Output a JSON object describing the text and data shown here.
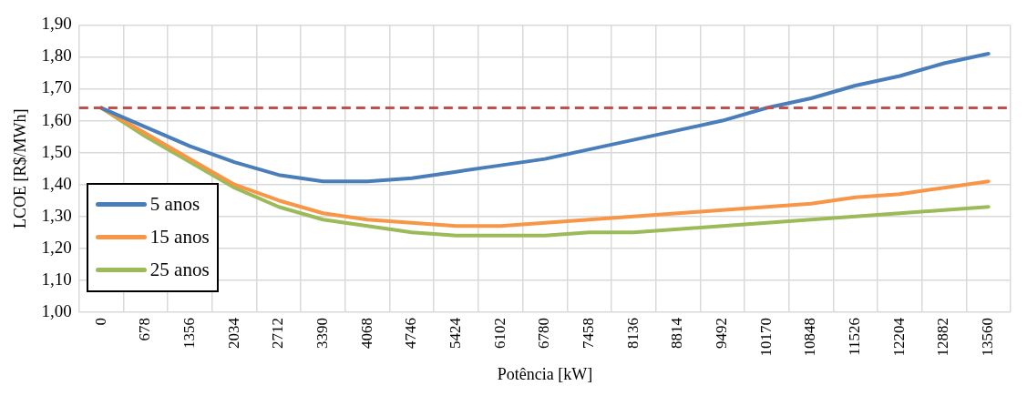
{
  "chart_data": {
    "type": "line",
    "xlabel": "Potência [kW]",
    "ylabel": "LCOE [R$/MWh]",
    "categories": [
      "0",
      "678",
      "1356",
      "2034",
      "2712",
      "3390",
      "4068",
      "4746",
      "5424",
      "6102",
      "6780",
      "7458",
      "8136",
      "8814",
      "9492",
      "10170",
      "10848",
      "11526",
      "12204",
      "12882",
      "13560"
    ],
    "series": [
      {
        "name": "5 anos",
        "color": "#4a7ebb",
        "values": [
          1.64,
          1.58,
          1.52,
          1.47,
          1.43,
          1.41,
          1.41,
          1.42,
          1.44,
          1.46,
          1.48,
          1.51,
          1.54,
          1.57,
          1.6,
          1.64,
          1.67,
          1.71,
          1.74,
          1.78,
          1.81
        ]
      },
      {
        "name": "15 anos",
        "color": "#f79646",
        "values": [
          1.64,
          1.56,
          1.48,
          1.4,
          1.35,
          1.31,
          1.29,
          1.28,
          1.27,
          1.27,
          1.28,
          1.29,
          1.3,
          1.31,
          1.32,
          1.33,
          1.34,
          1.36,
          1.37,
          1.39,
          1.41
        ]
      },
      {
        "name": "25 anos",
        "color": "#9bbb59",
        "values": [
          1.64,
          1.55,
          1.47,
          1.39,
          1.33,
          1.29,
          1.27,
          1.25,
          1.24,
          1.24,
          1.24,
          1.25,
          1.25,
          1.26,
          1.27,
          1.28,
          1.29,
          1.3,
          1.31,
          1.32,
          1.33
        ]
      }
    ],
    "ylim": [
      1.0,
      1.9
    ],
    "yticks": [
      {
        "value": 1.0,
        "label": "1,00"
      },
      {
        "value": 1.1,
        "label": "1,10"
      },
      {
        "value": 1.2,
        "label": "1,20"
      },
      {
        "value": 1.3,
        "label": "1,30"
      },
      {
        "value": 1.4,
        "label": "1,40"
      },
      {
        "value": 1.5,
        "label": "1,50"
      },
      {
        "value": 1.6,
        "label": "1,60"
      },
      {
        "value": 1.7,
        "label": "1,70"
      },
      {
        "value": 1.8,
        "label": "1,80"
      },
      {
        "value": 1.9,
        "label": "1,90"
      }
    ],
    "ref_lines": [
      {
        "axis": "y",
        "value": 1.64,
        "color": "#c0504d",
        "line_style": "dashed"
      }
    ],
    "grid": true,
    "legend": "bottom left",
    "marker": "none",
    "line_style": "solid"
  }
}
